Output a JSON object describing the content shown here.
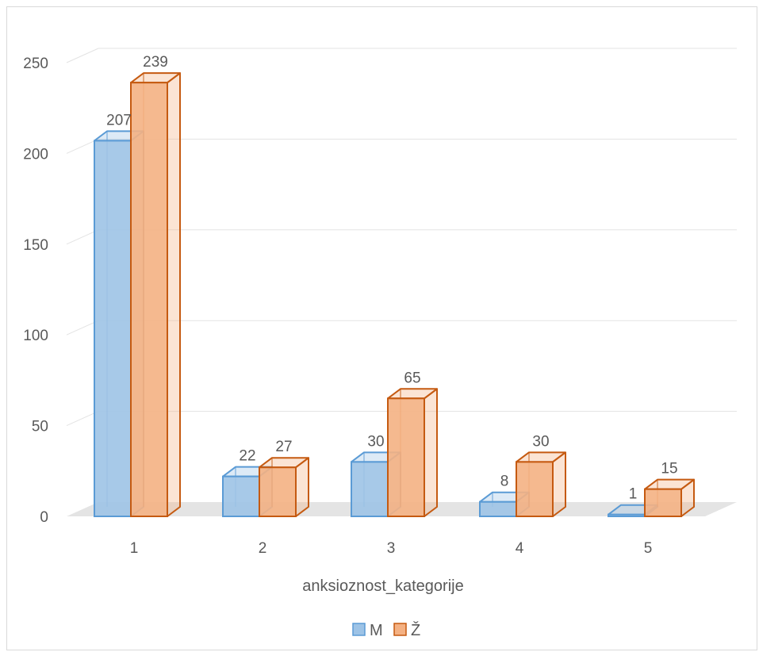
{
  "chart_data": {
    "type": "bar",
    "style": "3d-clustered-column",
    "title": "",
    "xlabel": "anksioznost_kategorije",
    "ylabel": "",
    "categories": [
      "1",
      "2",
      "3",
      "4",
      "5"
    ],
    "series": [
      {
        "name": "M",
        "values": [
          207,
          22,
          30,
          8,
          1
        ],
        "color": "#5b9bd5",
        "fill": "#9dc3e6"
      },
      {
        "name": "Ž",
        "values": [
          239,
          27,
          65,
          30,
          15
        ],
        "color": "#c55a11",
        "fill": "#f4b183"
      }
    ],
    "ylim": [
      0,
      250
    ],
    "yticks": [
      "0",
      "50",
      "100",
      "150",
      "200",
      "250"
    ],
    "grid": true,
    "legend": "bottom",
    "data_labels": true
  }
}
